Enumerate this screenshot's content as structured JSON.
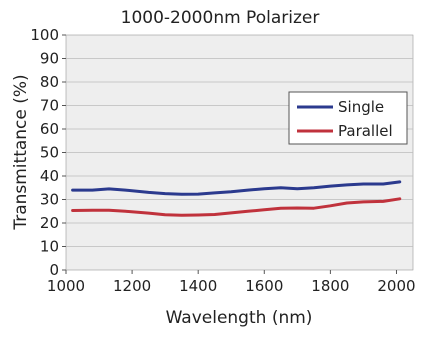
{
  "chart_data": {
    "type": "line",
    "title": "1000-2000nm Polarizer",
    "xlabel": "Wavelength (nm)",
    "ylabel": "Transmittance (%)",
    "xlim": [
      1000,
      2050
    ],
    "ylim": [
      0,
      100
    ],
    "xticks": [
      "1000",
      "1200",
      "1400",
      "1600",
      "1800",
      "2000"
    ],
    "yticks": [
      "0",
      "10",
      "20",
      "30",
      "40",
      "50",
      "60",
      "70",
      "80",
      "90",
      "100"
    ],
    "grid": "horizontal",
    "legend_position": "right",
    "series": [
      {
        "name": "Single",
        "color": "#2b3a8e",
        "points": [
          [
            1020,
            34.0
          ],
          [
            1080,
            34.0
          ],
          [
            1130,
            34.5
          ],
          [
            1180,
            34.0
          ],
          [
            1250,
            33.0
          ],
          [
            1300,
            32.5
          ],
          [
            1350,
            32.2
          ],
          [
            1400,
            32.3
          ],
          [
            1450,
            32.8
          ],
          [
            1500,
            33.3
          ],
          [
            1550,
            34.0
          ],
          [
            1600,
            34.6
          ],
          [
            1650,
            35.0
          ],
          [
            1700,
            34.6
          ],
          [
            1750,
            35.0
          ],
          [
            1800,
            35.7
          ],
          [
            1850,
            36.2
          ],
          [
            1900,
            36.6
          ],
          [
            1960,
            36.6
          ],
          [
            2010,
            37.5
          ]
        ]
      },
      {
        "name": "Parallel",
        "color": "#c0323c",
        "points": [
          [
            1020,
            25.3
          ],
          [
            1080,
            25.4
          ],
          [
            1130,
            25.4
          ],
          [
            1180,
            25.0
          ],
          [
            1250,
            24.2
          ],
          [
            1300,
            23.5
          ],
          [
            1350,
            23.3
          ],
          [
            1400,
            23.4
          ],
          [
            1450,
            23.6
          ],
          [
            1500,
            24.3
          ],
          [
            1550,
            25.0
          ],
          [
            1600,
            25.6
          ],
          [
            1650,
            26.3
          ],
          [
            1700,
            26.4
          ],
          [
            1750,
            26.3
          ],
          [
            1800,
            27.3
          ],
          [
            1850,
            28.5
          ],
          [
            1900,
            29.0
          ],
          [
            1960,
            29.2
          ],
          [
            2010,
            30.3
          ]
        ]
      }
    ]
  }
}
